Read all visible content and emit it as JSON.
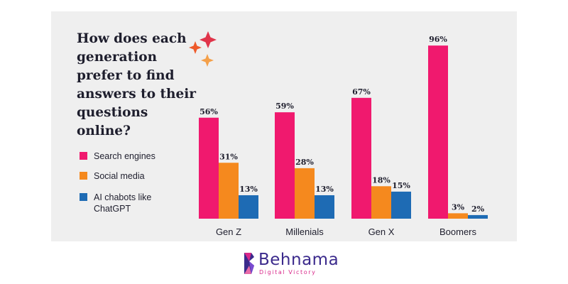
{
  "chart_data": {
    "type": "bar",
    "title": "How does each generation prefer to find answers to their questions online?",
    "categories": [
      "Gen Z",
      "Millenials",
      "Gen X",
      "Boomers"
    ],
    "series": [
      {
        "name": "Search engines",
        "color": "#f0196e",
        "values": [
          56,
          59,
          67,
          96
        ],
        "labels": [
          "56%",
          "59%",
          "67%",
          "96%"
        ]
      },
      {
        "name": "Social media",
        "color": "#f5891e",
        "values": [
          31,
          28,
          18,
          3
        ],
        "labels": [
          "31%",
          "28%",
          "18%",
          "3%"
        ]
      },
      {
        "name": "AI chabots like ChatGPT",
        "color": "#1e6bb4",
        "values": [
          13,
          13,
          15,
          2
        ],
        "labels": [
          "13%",
          "13%",
          "15%",
          "2%"
        ]
      }
    ],
    "ylim": [
      0,
      100
    ],
    "grid": false,
    "legend_position": "left"
  },
  "logo": {
    "name": "Behnama",
    "tagline": "Digital Victory",
    "colors": {
      "primary": "#3b2a8c",
      "accent": "#d9288a"
    }
  },
  "decoration": {
    "icon": "sparkle-icon",
    "colors": [
      "#e0344a",
      "#ee5a2a",
      "#f4a04a"
    ]
  }
}
